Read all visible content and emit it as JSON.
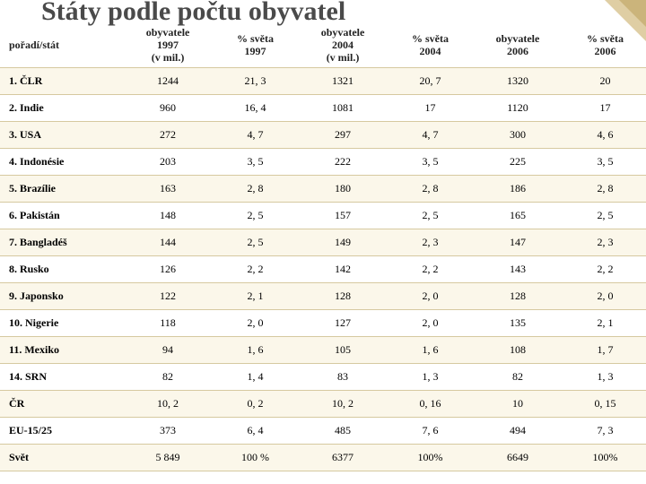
{
  "title": "Státy podle počtu obyvatel",
  "columns": [
    "pořadí/stát",
    "obyvatele\n1997\n(v mil.)",
    "% světa\n1997",
    "obyvatele\n2004\n(v mil.)",
    "% světa\n2004",
    "obyvatele\n2006",
    "% světa\n2006"
  ],
  "rows": [
    [
      "1. ČLR",
      "1244",
      "21, 3",
      "1321",
      "20, 7",
      "1320",
      "20"
    ],
    [
      "2. Indie",
      "960",
      "16, 4",
      "1081",
      "17",
      "1120",
      "17"
    ],
    [
      "3. USA",
      "272",
      "4, 7",
      "297",
      "4, 7",
      "300",
      "4, 6"
    ],
    [
      "4. Indonésie",
      "203",
      "3, 5",
      "222",
      "3, 5",
      "225",
      "3, 5"
    ],
    [
      "5. Brazílie",
      "163",
      "2, 8",
      "180",
      "2, 8",
      "186",
      "2, 8"
    ],
    [
      "6. Pakistán",
      "148",
      "2, 5",
      "157",
      "2, 5",
      "165",
      "2, 5"
    ],
    [
      "7. Bangladéš",
      "144",
      "2, 5",
      "149",
      "2, 3",
      "147",
      "2, 3"
    ],
    [
      "8. Rusko",
      "126",
      "2, 2",
      "142",
      "2, 2",
      "143",
      "2, 2"
    ],
    [
      "9. Japonsko",
      "122",
      "2, 1",
      "128",
      "2, 0",
      "128",
      "2, 0"
    ],
    [
      "10. Nigerie",
      "118",
      "2, 0",
      "127",
      "2, 0",
      "135",
      "2, 1"
    ],
    [
      "11. Mexiko",
      "94",
      "1, 6",
      "105",
      "1, 6",
      "108",
      "1, 7"
    ],
    [
      "14. SRN",
      "82",
      "1, 4",
      "83",
      "1, 3",
      "82",
      "1, 3"
    ],
    [
      "ČR",
      "10, 2",
      "0, 2",
      "10, 2",
      "0, 16",
      "10",
      "0, 15"
    ],
    [
      "EU-15/25",
      "373",
      "6, 4",
      "485",
      "7, 6",
      "494",
      "7, 3"
    ],
    [
      "Svět",
      "5 849",
      "100 %",
      "6377",
      "100%",
      "6649",
      "100%"
    ]
  ],
  "style": {
    "row_odd_bg": "#fbf7ea",
    "row_even_bg": "#ffffff",
    "border_color": "#d6c9a0",
    "title_color": "#4a4a4a",
    "corner_color": "#c4a65a"
  }
}
